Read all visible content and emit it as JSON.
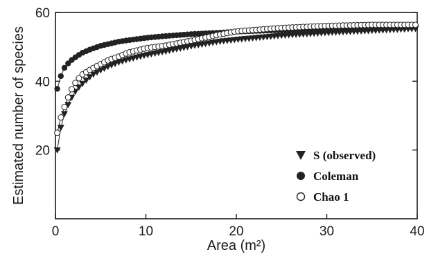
{
  "chart_data": {
    "type": "scatter",
    "title": "",
    "xlabel": "Area (m²)",
    "ylabel": "Estimated number of species",
    "xlim": [
      0,
      40
    ],
    "ylim": [
      0,
      60
    ],
    "x_ticks": [
      0,
      10,
      20,
      30,
      40
    ],
    "y_ticks": [
      20,
      40,
      60
    ],
    "grid": false,
    "legend_position": "bottom-right",
    "series": [
      {
        "name": "S (observed)",
        "marker": "filled-triangle-down",
        "color": "#222222",
        "x": [
          0.2,
          0.6,
          1.0,
          1.5,
          2.0,
          2.5,
          3.0,
          4.0,
          5.0,
          6.0,
          7.0,
          8.0,
          10.0,
          12.0,
          15.0,
          18.0,
          20.0,
          25.0,
          30.0,
          35.0,
          40.0
        ],
        "y": [
          20.0,
          26.5,
          30.5,
          33.8,
          36.3,
          38.0,
          39.3,
          41.7,
          43.2,
          44.5,
          45.5,
          46.3,
          47.6,
          48.6,
          50.2,
          51.5,
          52.1,
          53.3,
          54.1,
          54.7,
          55.3
        ]
      },
      {
        "name": "Coleman",
        "marker": "filled-circle",
        "color": "#222222",
        "x": [
          0.2,
          0.6,
          1.0,
          1.5,
          2.0,
          2.5,
          3.0,
          4.0,
          5.0,
          6.0,
          7.0,
          8.0,
          10.0,
          12.0,
          15.0,
          18.0,
          20.0,
          25.0,
          30.0,
          35.0,
          40.0
        ],
        "y": [
          37.8,
          41.5,
          43.9,
          45.5,
          46.6,
          47.5,
          48.3,
          49.4,
          50.3,
          50.9,
          51.5,
          51.9,
          52.6,
          53.1,
          53.7,
          54.1,
          54.4,
          54.9,
          55.3,
          55.6,
          55.8
        ]
      },
      {
        "name": "Chao 1",
        "marker": "open-circle",
        "color": "#222222",
        "x": [
          0.2,
          0.6,
          1.0,
          1.5,
          2.0,
          2.5,
          3.0,
          4.0,
          5.0,
          6.0,
          7.0,
          8.0,
          10.0,
          12.0,
          15.0,
          18.0,
          20.0,
          25.0,
          30.0,
          35.0,
          40.0
        ],
        "y": [
          25.0,
          29.5,
          32.5,
          36.0,
          38.8,
          40.6,
          42.0,
          43.6,
          45.0,
          46.3,
          47.2,
          48.3,
          49.6,
          50.3,
          51.8,
          53.5,
          54.5,
          55.5,
          56.1,
          56.4,
          56.4
        ]
      }
    ]
  }
}
